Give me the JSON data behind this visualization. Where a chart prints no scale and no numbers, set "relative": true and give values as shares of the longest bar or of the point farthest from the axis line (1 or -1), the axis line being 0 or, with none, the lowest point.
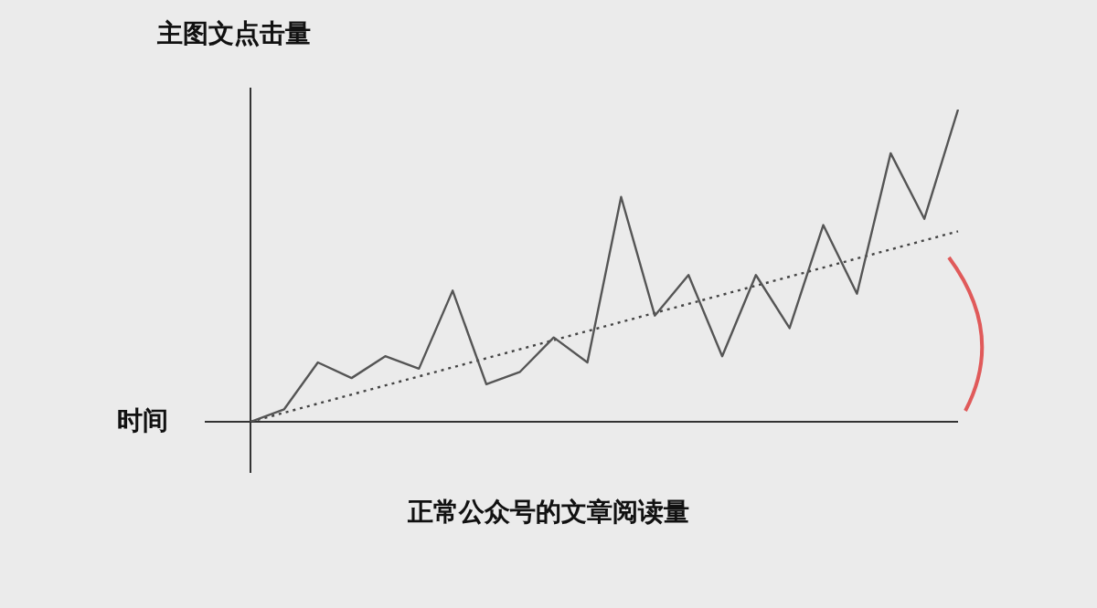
{
  "chart_data": {
    "type": "line",
    "relative": true,
    "ylabel": "主图文点击量",
    "xlabel": "时间",
    "annotations": [
      "正常公众号的文章阅读量"
    ],
    "categories": [
      null,
      null,
      null,
      null,
      null,
      null,
      null,
      null,
      null,
      null,
      null,
      null,
      null,
      null,
      null,
      null,
      null,
      null,
      null,
      null,
      null,
      null
    ],
    "series": [
      {
        "color": "#555555",
        "values": [
          0,
          0.04,
          0.19,
          0.14,
          0.21,
          0.17,
          0.42,
          0.12,
          0.16,
          0.27,
          0.19,
          0.72,
          0.34,
          0.47,
          0.21,
          0.47,
          0.3,
          0.63,
          0.41,
          0.86,
          0.65,
          1
        ],
        "line_style": "solid"
      },
      {
        "color": "#444444",
        "values": [
          0,
          null,
          null,
          null,
          null,
          null,
          null,
          null,
          null,
          null,
          null,
          null,
          null,
          null,
          null,
          null,
          null,
          null,
          null,
          null,
          null,
          0.61
        ],
        "line_style": "dotted"
      }
    ],
    "legend": false,
    "tick_labels": false,
    "marker": "none"
  }
}
